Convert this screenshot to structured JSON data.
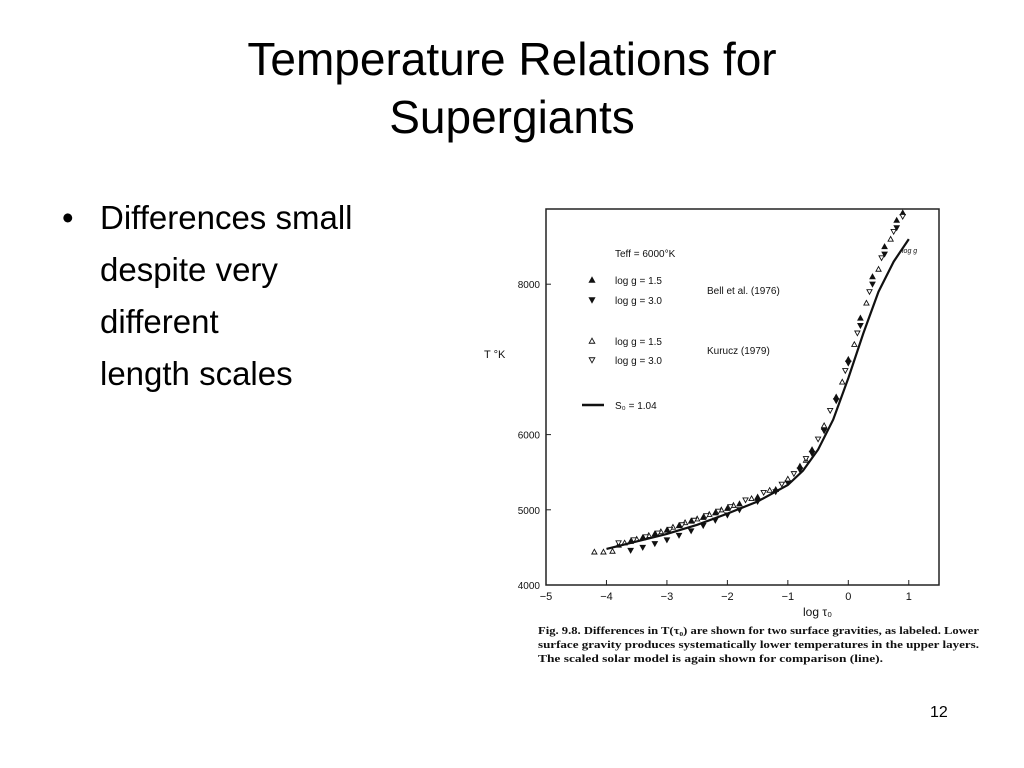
{
  "slide": {
    "title_lines": [
      "Temperature Relations for",
      "Supergiants"
    ],
    "bullet_lines": [
      "Differences small",
      "despite very",
      "different",
      "length scales"
    ],
    "page_number": "12"
  },
  "chart_data": {
    "type": "scatter",
    "xlabel": "log τ₀",
    "ylabel": "T °K",
    "xlim": [
      -5,
      1.5
    ],
    "ylim": [
      4000,
      9000
    ],
    "xticks": [
      -5,
      -4,
      -3,
      -2,
      -1,
      0,
      1
    ],
    "xtick_labels": [
      "−5",
      "−4",
      "−3",
      "−2",
      "−1",
      "0",
      "1"
    ],
    "yticks": [
      4000,
      5000,
      6000,
      8000
    ],
    "ytick_labels": [
      "4000",
      "5000",
      "6000",
      "8000"
    ],
    "grid": false,
    "legend": {
      "title": "Teff = 6000°K",
      "entries": [
        {
          "label": "log g = 1.5",
          "marker": "triangle-up-filled"
        },
        {
          "label": "log g = 3.0",
          "marker": "triangle-down-filled"
        },
        {
          "label": "log g = 1.5",
          "marker": "triangle-up-open"
        },
        {
          "label": "log g = 3.0",
          "marker": "triangle-down-open"
        },
        {
          "label": "S₀ = 1.04",
          "marker": "line"
        }
      ],
      "group_labels": [
        "Bell et al. (1976)",
        "Kurucz (1979)"
      ]
    },
    "annotation": "log g",
    "series": [
      {
        "marker": "triangle-up-filled",
        "x": [
          -3.8,
          -3.6,
          -3.4,
          -3.2,
          -3.0,
          -2.8,
          -2.6,
          -2.4,
          -2.2,
          -2.0,
          -1.8,
          -1.5,
          -1.2,
          -1.0,
          -0.8,
          -0.6,
          -0.4,
          -0.2,
          0.0,
          0.2,
          0.4,
          0.6,
          0.8,
          0.9
        ],
        "y": [
          4530,
          4580,
          4630,
          4680,
          4730,
          4790,
          4850,
          4900,
          4960,
          5020,
          5080,
          5170,
          5270,
          5400,
          5580,
          5800,
          6100,
          6500,
          7000,
          7550,
          8100,
          8500,
          8850,
          8950
        ]
      },
      {
        "marker": "triangle-down-filled",
        "x": [
          -3.6,
          -3.4,
          -3.2,
          -3.0,
          -2.8,
          -2.6,
          -2.4,
          -2.2,
          -2.0,
          -1.8,
          -1.5,
          -1.2,
          -1.0,
          -0.8,
          -0.6,
          -0.4,
          -0.2,
          0.0,
          0.2,
          0.4,
          0.6,
          0.8
        ],
        "y": [
          4460,
          4500,
          4550,
          4600,
          4660,
          4720,
          4790,
          4860,
          4930,
          5000,
          5110,
          5240,
          5360,
          5530,
          5750,
          6050,
          6450,
          6950,
          7450,
          8000,
          8400,
          8750
        ]
      },
      {
        "marker": "triangle-up-open",
        "x": [
          -4.2,
          -4.05,
          -3.9,
          -3.7,
          -3.5,
          -3.3,
          -3.1,
          -2.9,
          -2.7,
          -2.5,
          -2.3,
          -2.1,
          -1.9,
          -1.6,
          -1.3,
          -1.0,
          -0.7,
          -0.4,
          -0.1,
          0.1,
          0.3,
          0.5,
          0.7
        ],
        "y": [
          4440,
          4440,
          4450,
          4560,
          4610,
          4660,
          4710,
          4770,
          4830,
          4880,
          4940,
          5000,
          5060,
          5150,
          5260,
          5410,
          5660,
          6120,
          6700,
          7200,
          7750,
          8200,
          8600
        ]
      },
      {
        "marker": "triangle-down-open",
        "x": [
          -3.8,
          -3.55,
          -3.35,
          -3.15,
          -2.95,
          -2.75,
          -2.55,
          -2.35,
          -2.15,
          -1.95,
          -1.7,
          -1.4,
          -1.1,
          -0.9,
          -0.7,
          -0.5,
          -0.3,
          -0.05,
          0.15,
          0.35,
          0.55,
          0.75,
          0.9
        ],
        "y": [
          4560,
          4600,
          4640,
          4690,
          4740,
          4800,
          4860,
          4920,
          4980,
          5040,
          5130,
          5230,
          5340,
          5480,
          5680,
          5940,
          6320,
          6850,
          7350,
          7900,
          8350,
          8700,
          8900
        ]
      },
      {
        "name": "S₀ = 1.04",
        "marker": "line",
        "x": [
          -4.0,
          -3.5,
          -3.0,
          -2.5,
          -2.0,
          -1.5,
          -1.0,
          -0.75,
          -0.5,
          -0.25,
          0.0,
          0.25,
          0.5,
          0.75,
          1.0
        ],
        "y": [
          4480,
          4580,
          4680,
          4800,
          4950,
          5110,
          5330,
          5520,
          5800,
          6200,
          6750,
          7350,
          7900,
          8300,
          8600
        ]
      }
    ],
    "caption": "Fig. 9.8. Differences in T(τ₀) are shown for two surface gravities, as labeled. Lower surface gravity produces systematically lower temperatures in the upper layers. The scaled solar model is again shown for comparison (line).",
    "caption_lines": [
      "Fig. 9.8. Differences in T(τ₀) are shown for two surface gravities, as labeled. Lower",
      "surface gravity produces systematically lower temperatures in the upper layers.",
      "The scaled solar model is again shown for comparison (line)."
    ]
  }
}
